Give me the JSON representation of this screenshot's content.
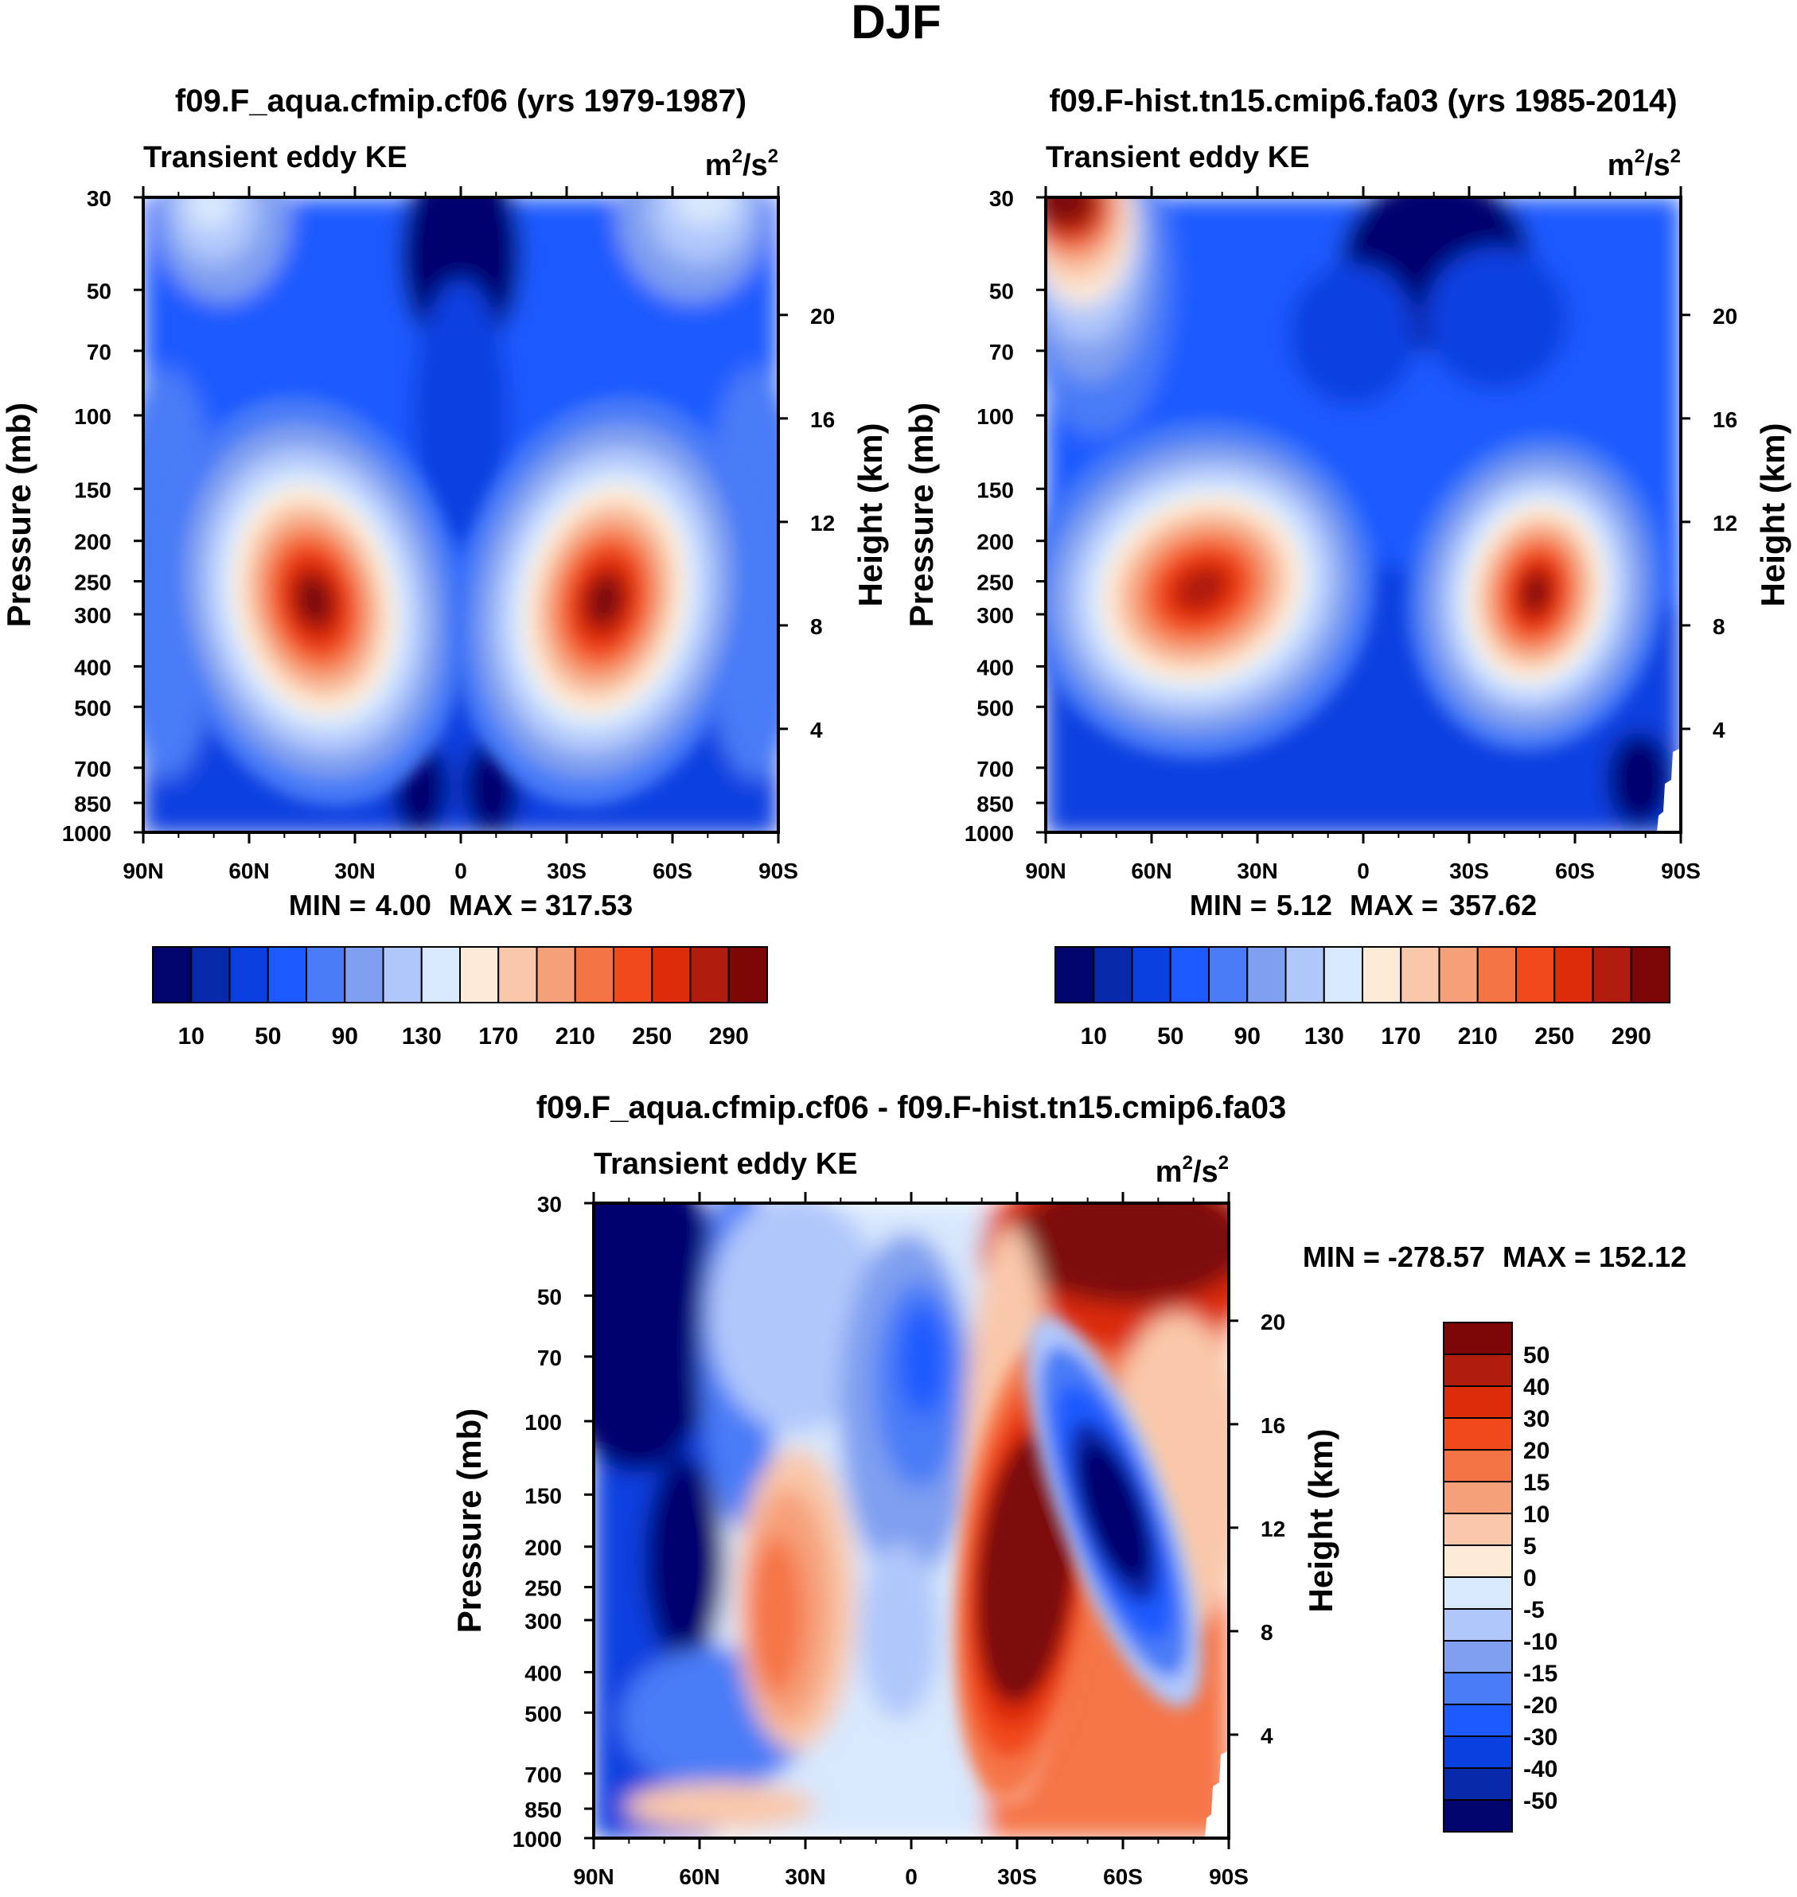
{
  "title": "DJF",
  "colors": {
    "kePalette": [
      "#02046e",
      "#0828aa",
      "#0a3fe0",
      "#1c5aff",
      "#4a7cf7",
      "#7f9ff0",
      "#b0c7fb",
      "#d8e8fd",
      "#fdebd8",
      "#f9c8aa",
      "#f6a07a",
      "#f57446",
      "#f04a1c",
      "#dc2c0a",
      "#b01d0d",
      "#7d0707"
    ],
    "diffPalette": [
      "#02046e",
      "#0828aa",
      "#0a3fe0",
      "#1c5aff",
      "#4a7cf7",
      "#7f9ff0",
      "#b0c7fb",
      "#d8e8fd",
      "#fdebd8",
      "#f9c8aa",
      "#f6a07a",
      "#f57446",
      "#f04a1c",
      "#dc2c0a",
      "#b01d0d",
      "#7d0707"
    ]
  },
  "chart_data": [
    {
      "type": "contour",
      "title": "f09.F_aqua.cfmip.cf06 (yrs 1979-1987)",
      "left_label": "Transient eddy KE",
      "units": "m²/s²",
      "xlabel": "",
      "ylabel": "Pressure (mb)",
      "y2label": "Height (km)",
      "x_ticks": [
        "90N",
        "60N",
        "30N",
        "0",
        "30S",
        "60S",
        "90S"
      ],
      "y_ticks": [
        "30",
        "50",
        "70",
        "100",
        "150",
        "200",
        "250",
        "300",
        "400",
        "500",
        "700",
        "850",
        "1000"
      ],
      "y2_ticks": [
        "20",
        "16",
        "12",
        "8",
        "4"
      ],
      "ylim": [
        1000,
        30
      ],
      "xlim": [
        90,
        -90
      ],
      "stats": {
        "min_label": "MIN =",
        "min": "4.00",
        "max_label": "MAX =",
        "max": "317.53"
      },
      "colorbar": {
        "orientation": "horizontal",
        "levels": 16,
        "tick_labels": [
          "10",
          "50",
          "90",
          "130",
          "170",
          "210",
          "250",
          "290"
        ]
      },
      "features": [
        {
          "lat": 40,
          "p": 270,
          "value": 317.53
        },
        {
          "lat": -40,
          "p": 270,
          "value": 317.53
        }
      ]
    },
    {
      "type": "contour",
      "title": "f09.F-hist.tn15.cmip6.fa03 (yrs 1985-2014)",
      "left_label": "Transient eddy KE",
      "units": "m²/s²",
      "xlabel": "",
      "ylabel": "Pressure (mb)",
      "y2label": "Height (km)",
      "x_ticks": [
        "90N",
        "60N",
        "30N",
        "0",
        "30S",
        "60S",
        "90S"
      ],
      "y_ticks": [
        "30",
        "50",
        "70",
        "100",
        "150",
        "200",
        "250",
        "300",
        "400",
        "500",
        "700",
        "850",
        "1000"
      ],
      "y2_ticks": [
        "20",
        "16",
        "12",
        "8",
        "4"
      ],
      "ylim": [
        1000,
        30
      ],
      "xlim": [
        90,
        -90
      ],
      "stats": {
        "min_label": "MIN =",
        "min": "5.12",
        "max_label": "MAX = ",
        "max": "357.62"
      },
      "colorbar": {
        "orientation": "horizontal",
        "levels": 16,
        "tick_labels": [
          "10",
          "50",
          "90",
          "130",
          "170",
          "210",
          "250",
          "290"
        ]
      },
      "features": [
        {
          "lat": 45,
          "p": 260,
          "value": 280
        },
        {
          "lat": -50,
          "p": 260,
          "value": 357.62
        },
        {
          "lat": 85,
          "p": 35,
          "value": 300
        }
      ]
    },
    {
      "type": "contour",
      "title": "f09.F_aqua.cfmip.cf06 - f09.F-hist.tn15.cmip6.fa03",
      "left_label": "Transient eddy KE",
      "units": "m²/s²",
      "xlabel": "",
      "ylabel": "Pressure (mb)",
      "y2label": "Height (km)",
      "x_ticks": [
        "90N",
        "60N",
        "30N",
        "0",
        "30S",
        "60S",
        "90S"
      ],
      "y_ticks": [
        "30",
        "50",
        "70",
        "100",
        "150",
        "200",
        "250",
        "300",
        "400",
        "500",
        "700",
        "850",
        "1000"
      ],
      "y2_ticks": [
        "20",
        "16",
        "12",
        "8",
        "4"
      ],
      "ylim": [
        1000,
        30
      ],
      "xlim": [
        90,
        -90
      ],
      "stats": {
        "min_label": "MIN =",
        "min": "-278.57",
        "max_label": "MAX =",
        "max": "152.12"
      },
      "colorbar": {
        "orientation": "vertical",
        "levels": 16,
        "tick_labels": [
          "50",
          "40",
          "30",
          "20",
          "15",
          "10",
          "5",
          "0",
          "-5",
          "-10",
          "-15",
          "-20",
          "-30",
          "-40",
          "-50"
        ]
      },
      "features": [
        {
          "lat": 70,
          "p": 40,
          "value": -278.57
        },
        {
          "lat": -30,
          "p": 300,
          "value": 152.12
        },
        {
          "lat": -60,
          "p": 250,
          "value": -60
        }
      ]
    }
  ]
}
